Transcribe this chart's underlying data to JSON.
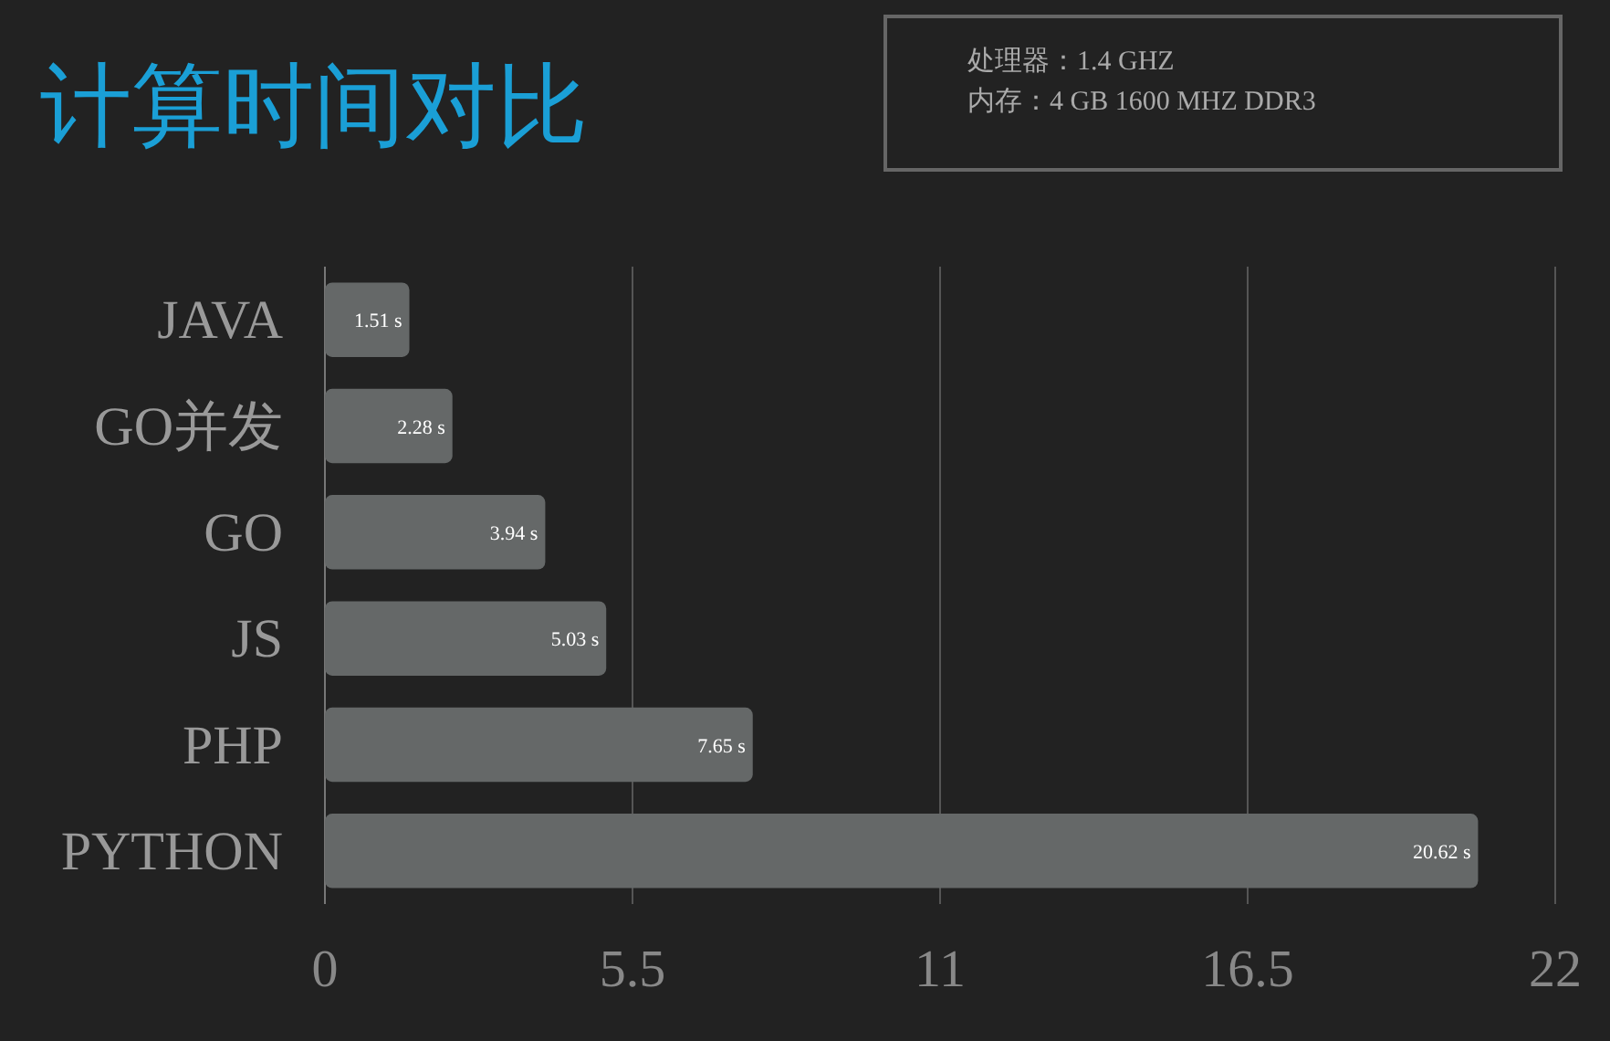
{
  "chart_data": {
    "type": "bar",
    "orientation": "horizontal",
    "title": "计算时间对比",
    "annotations": [
      "处理器：1.4 GHZ",
      "内存：4 GB 1600 MHZ DDR3"
    ],
    "categories": [
      "JAVA",
      "GO并发",
      "GO",
      "JS",
      "PHP",
      "PYTHON"
    ],
    "values": [
      1.51,
      2.28,
      3.94,
      5.03,
      7.65,
      20.62
    ],
    "value_labels": [
      "1.51 s",
      "2.28 s",
      "3.94 s",
      "5.03 s",
      "7.65 s",
      "20.62 s"
    ],
    "color": "#656868",
    "xlim": [
      0,
      22
    ],
    "xticks": [
      0,
      5.5,
      11,
      16.5,
      22
    ],
    "grid": "x"
  }
}
